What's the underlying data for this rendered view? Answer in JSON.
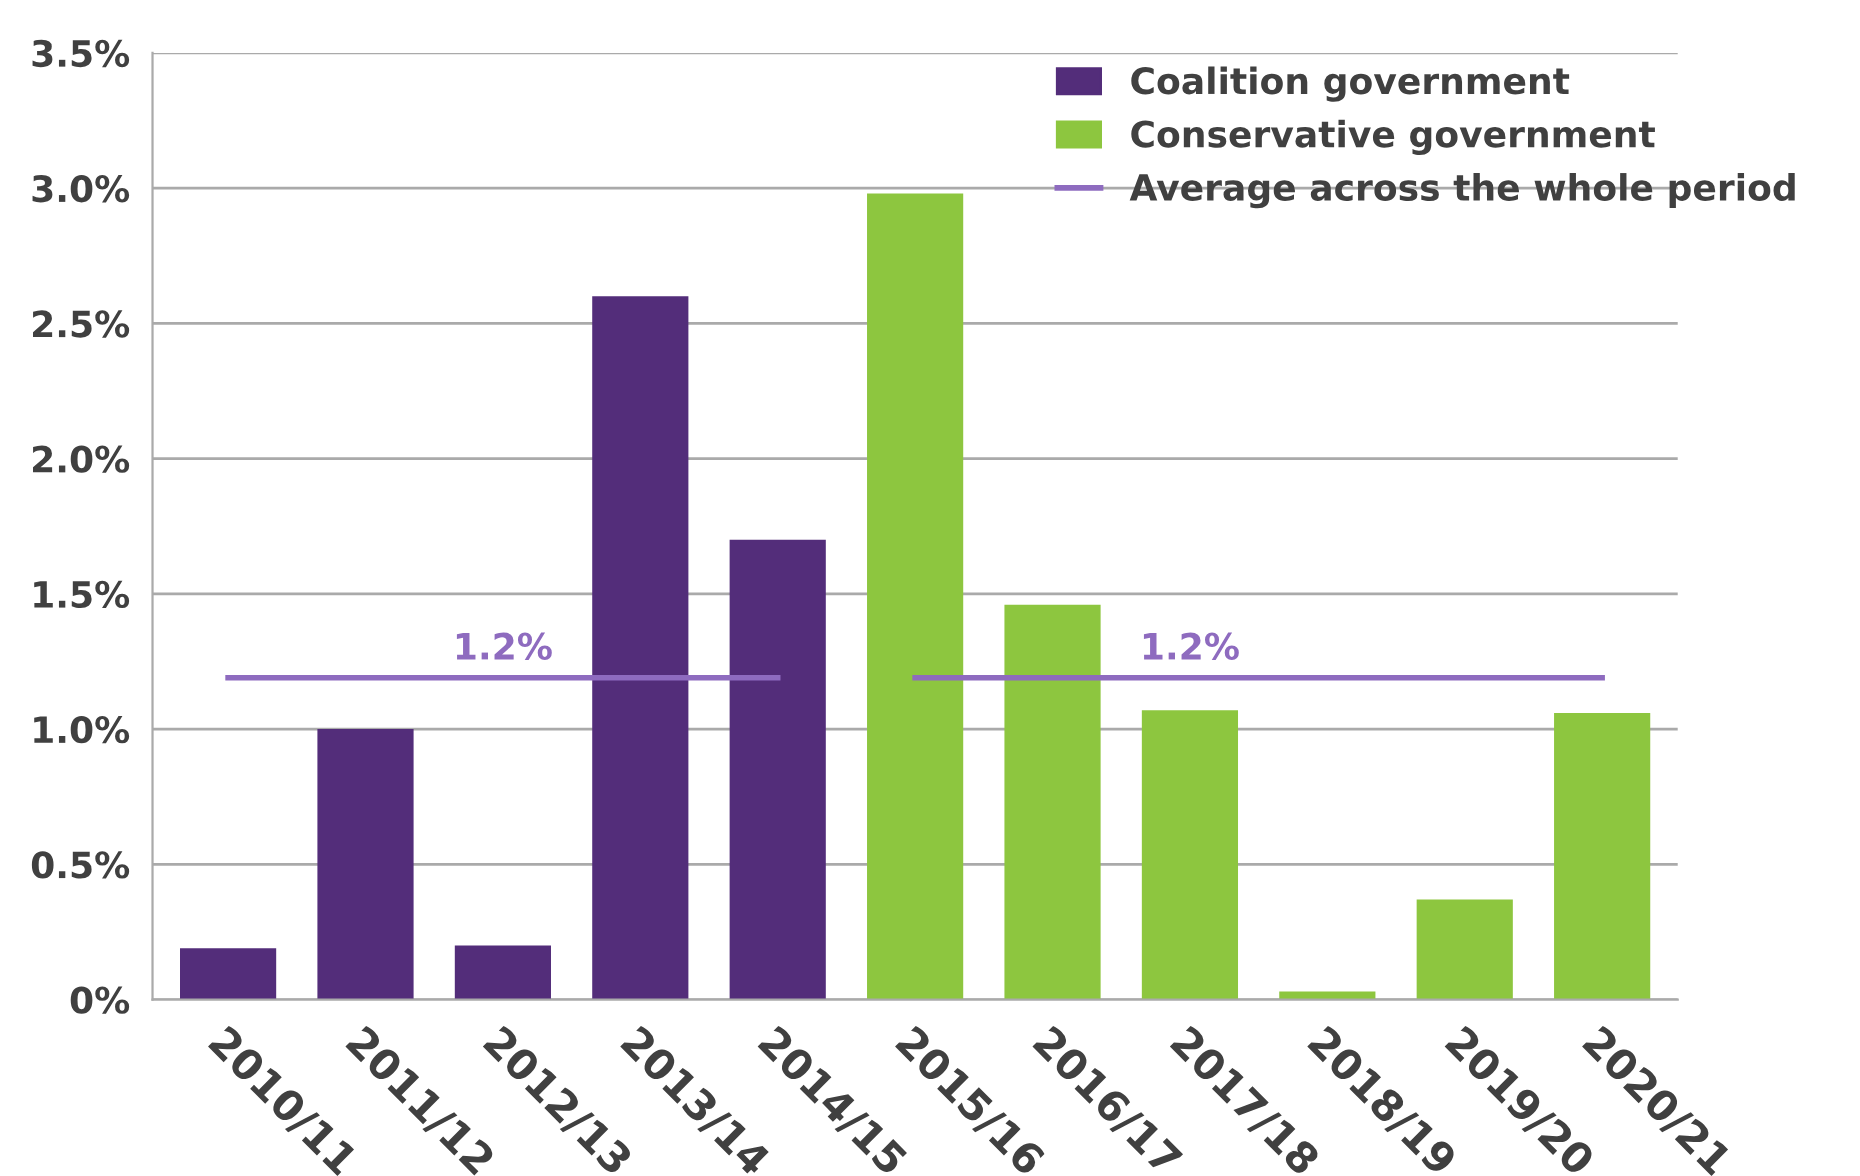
{
  "chart_data": {
    "type": "bar",
    "categories": [
      "2010/11",
      "2011/12",
      "2012/13",
      "2013/14",
      "2014/15",
      "2015/16",
      "2016/17",
      "2017/18",
      "2018/19",
      "2019/20",
      "2020/21"
    ],
    "series": [
      {
        "name": "Coalition government",
        "color": "#532d7a",
        "values": [
          0.19,
          1.0,
          0.2,
          2.6,
          1.7,
          null,
          null,
          null,
          null,
          null,
          null
        ]
      },
      {
        "name": "Conservative government",
        "color": "#8dc63f",
        "values": [
          null,
          null,
          null,
          null,
          null,
          2.98,
          1.46,
          1.07,
          0.03,
          0.37,
          1.06
        ]
      },
      {
        "name": "Average across the whole period",
        "type": "line",
        "color": "#8e6bbf",
        "values": [
          1.19,
          1.19,
          1.19,
          1.19,
          1.19,
          null,
          null,
          null,
          null,
          null,
          null
        ]
      },
      {
        "type": "line",
        "color": "#8e6bbf",
        "values": [
          null,
          null,
          null,
          null,
          null,
          1.19,
          1.19,
          1.19,
          1.19,
          1.19,
          1.19
        ]
      }
    ],
    "annotations": [
      {
        "text": "1.2%",
        "x": "2012/13",
        "y": 1.19
      },
      {
        "text": "1.2%",
        "x": "2017/18",
        "y": 1.19
      }
    ],
    "ylim": [
      0,
      3.5
    ],
    "yticks": [
      {
        "value": 0,
        "label": "0%"
      },
      {
        "value": 0.5,
        "label": "0.5%"
      },
      {
        "value": 1.0,
        "label": "1.0%"
      },
      {
        "value": 1.5,
        "label": "1.5%"
      },
      {
        "value": 2.0,
        "label": "2.0%"
      },
      {
        "value": 2.5,
        "label": "2.5%"
      },
      {
        "value": 3.0,
        "label": "3.0%"
      },
      {
        "value": 3.5,
        "label": "3.5%"
      }
    ],
    "grid": "y",
    "legend": "top right"
  }
}
